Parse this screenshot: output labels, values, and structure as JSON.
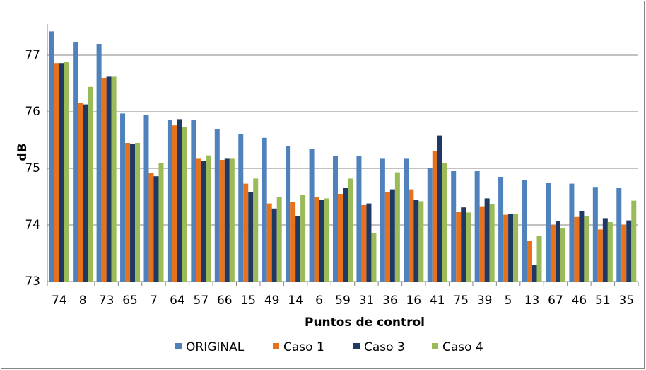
{
  "chart_data": {
    "type": "bar",
    "x_label": "Puntos de control",
    "y_label": "dB",
    "categories": [
      "74",
      "8",
      "73",
      "65",
      "7",
      "64",
      "57",
      "66",
      "15",
      "49",
      "14",
      "6",
      "59",
      "31",
      "36",
      "16",
      "41",
      "75",
      "39",
      "5",
      "13",
      "67",
      "46",
      "51",
      "35"
    ],
    "series": [
      {
        "name": "ORIGINAL",
        "color": "#4f81bd",
        "values": [
          77.42,
          77.23,
          77.2,
          75.97,
          75.95,
          75.86,
          75.86,
          75.69,
          75.61,
          75.54,
          75.4,
          75.35,
          75.22,
          75.22,
          75.17,
          75.17,
          75.0,
          74.95,
          74.95,
          74.85,
          74.8,
          74.75,
          74.73,
          74.66,
          74.65
        ]
      },
      {
        "name": "Caso 1",
        "color": "#e8711c",
        "values": [
          76.86,
          76.16,
          76.6,
          75.45,
          74.92,
          75.76,
          75.17,
          75.15,
          74.73,
          74.38,
          74.4,
          74.49,
          74.55,
          74.35,
          74.58,
          74.63,
          75.3,
          74.23,
          74.33,
          74.18,
          73.72,
          74.0,
          74.14,
          73.92,
          74.0
        ]
      },
      {
        "name": "Caso 3",
        "color": "#1f3864",
        "values": [
          76.86,
          76.13,
          76.62,
          75.43,
          74.86,
          75.87,
          75.13,
          75.17,
          74.58,
          74.29,
          74.15,
          74.45,
          74.65,
          74.38,
          74.63,
          74.45,
          75.58,
          74.31,
          74.47,
          74.19,
          73.3,
          74.07,
          74.25,
          74.12,
          74.08
        ]
      },
      {
        "name": "Caso 4",
        "color": "#9bbb59",
        "values": [
          76.88,
          76.44,
          76.62,
          75.45,
          75.1,
          75.73,
          75.23,
          75.17,
          74.82,
          74.5,
          74.53,
          74.47,
          74.82,
          73.86,
          74.93,
          74.42,
          75.1,
          74.22,
          74.37,
          74.19,
          73.8,
          73.95,
          74.15,
          74.05,
          74.43
        ]
      }
    ],
    "ylim": [
      73,
      77.55
    ],
    "yticks": [
      73,
      74,
      75,
      76,
      77
    ],
    "grid": true,
    "legend": "bottom"
  }
}
